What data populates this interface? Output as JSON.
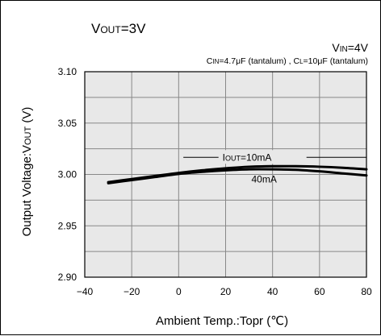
{
  "chart_data": {
    "type": "line",
    "title": {
      "main": "V",
      "sub": "OUT",
      "rest": "=3V"
    },
    "condition_vin": {
      "main": "V",
      "sub": "IN",
      "rest": "=4V"
    },
    "condition_caps": {
      "a_main": "C",
      "a_sub": "IN",
      "a_rest": "=4.7μF (tantalum) , ",
      "b_main": "C",
      "b_sub": "L",
      "b_rest": "=10μF (tantalum)"
    },
    "xlabel": "Ambient Temp.:Topr (℃)",
    "ylabel": {
      "main": "Output Voltage:V",
      "sub": "OUT",
      "rest": " (V)"
    },
    "xlim": [
      -40,
      80
    ],
    "ylim": [
      2.9,
      3.1
    ],
    "x_ticks": [
      -40,
      -20,
      0,
      20,
      40,
      60,
      80
    ],
    "x_tick_labels": [
      "−40",
      "−20",
      "0",
      "20",
      "40",
      "60",
      "80"
    ],
    "y_ticks": [
      2.9,
      2.925,
      2.95,
      2.975,
      3.0,
      3.025,
      3.05,
      3.075,
      3.1
    ],
    "y_tick_labels": [
      "2.90",
      "",
      "2.95",
      "",
      "3.00",
      "",
      "3.05",
      "",
      "3.10"
    ],
    "grid": true,
    "grid_color": "#888888",
    "plot_bg": "#e8e8e8",
    "series": [
      {
        "name": "IOUT=10mA",
        "color": "#000000",
        "x": [
          -30,
          -20,
          -10,
          0,
          10,
          20,
          30,
          40,
          50,
          60,
          70,
          80
        ],
        "y": [
          2.9925,
          2.9955,
          2.9985,
          3.0015,
          3.004,
          3.006,
          3.0075,
          3.008,
          3.008,
          3.0075,
          3.0065,
          3.005
        ]
      },
      {
        "name": "40mA",
        "color": "#000000",
        "x": [
          -30,
          -20,
          -10,
          0,
          10,
          20,
          30,
          40,
          50,
          60,
          70,
          80
        ],
        "y": [
          2.9915,
          2.9945,
          2.9975,
          3.0005,
          3.0025,
          3.004,
          3.005,
          3.005,
          3.0045,
          3.003,
          3.001,
          2.999
        ]
      }
    ],
    "annotations": [
      {
        "label_main": "I",
        "label_sub": "OUT",
        "label_rest": "=10mA",
        "series": 0
      },
      {
        "label_main": "40mA",
        "label_sub": "",
        "label_rest": "",
        "series": 1
      }
    ]
  }
}
